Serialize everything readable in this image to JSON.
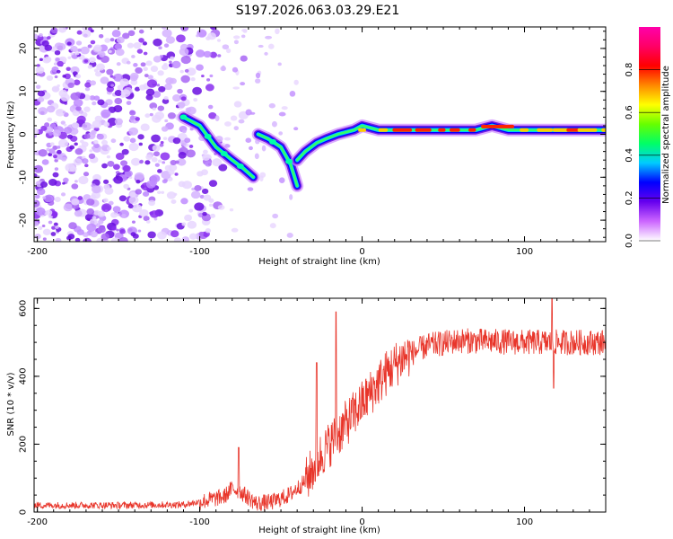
{
  "title": "S197.2026.063.03.29.E21",
  "colors": {
    "snr_line": "#e8352a",
    "speck": "#8a2ef0",
    "axis": "#000000"
  },
  "chart_data": [
    {
      "type": "heatmap",
      "name": "spectrogram",
      "xlabel": "Height of straight line (km)",
      "ylabel": "Frequency (Hz)",
      "xlim": [
        -202,
        150
      ],
      "ylim": [
        -25,
        25
      ],
      "xticks": [
        -200,
        -100,
        0,
        100
      ],
      "yticks": [
        -20,
        -10,
        0,
        10,
        20
      ],
      "colorbar": {
        "label": "Normalized spectral amplitude",
        "range": [
          0,
          1
        ],
        "ticks": [
          "0.0",
          "0.2",
          "0.4",
          "0.6",
          "0.8"
        ],
        "tick_values": [
          0.0,
          0.2,
          0.4,
          0.6,
          0.8
        ],
        "stops": [
          "#ffffff",
          "#cc66ff",
          "#6600ee",
          "#0000ff",
          "#00ccff",
          "#00ff66",
          "#66ff00",
          "#ffff00",
          "#ff8800",
          "#ff0000",
          "#ff0066",
          "#ff00aa"
        ]
      },
      "noise_region": {
        "x": [
          -202,
          -90
        ],
        "y": [
          -25,
          25
        ]
      },
      "ridge": [
        {
          "x": -110,
          "f": 4
        },
        {
          "x": -100,
          "f": 2
        },
        {
          "x": -90,
          "f": -3
        },
        {
          "x": -80,
          "f": -6
        },
        {
          "x": -73,
          "f": -8
        },
        {
          "x": -67,
          "f": -10
        },
        {
          "x": -64,
          "f": 0
        },
        {
          "x": -58,
          "f": -1
        },
        {
          "x": -50,
          "f": -3
        },
        {
          "x": -44,
          "f": -7
        },
        {
          "x": -40,
          "f": -12
        },
        {
          "x": -40,
          "f": -6
        },
        {
          "x": -35,
          "f": -4
        },
        {
          "x": -28,
          "f": -2
        },
        {
          "x": -22,
          "f": -1
        },
        {
          "x": -15,
          "f": 0
        },
        {
          "x": -5,
          "f": 1
        },
        {
          "x": 0,
          "f": 2
        },
        {
          "x": 10,
          "f": 1
        },
        {
          "x": 30,
          "f": 1
        },
        {
          "x": 50,
          "f": 1
        },
        {
          "x": 70,
          "f": 1
        },
        {
          "x": 80,
          "f": 2
        },
        {
          "x": 90,
          "f": 1
        },
        {
          "x": 100,
          "f": 1
        },
        {
          "x": 115,
          "f": 1
        },
        {
          "x": 130,
          "f": 1
        },
        {
          "x": 150,
          "f": 1
        }
      ]
    },
    {
      "type": "line",
      "name": "snr",
      "xlabel": "Height of straight line (km)",
      "ylabel": "SNR (10 * v/v)",
      "xlim": [
        -202,
        150
      ],
      "ylim": [
        0,
        630
      ],
      "xticks": [
        -200,
        -100,
        0,
        100
      ],
      "yticks": [
        0,
        200,
        400,
        600
      ],
      "trend": [
        {
          "x": -202,
          "y": 20
        },
        {
          "x": -150,
          "y": 20
        },
        {
          "x": -110,
          "y": 22
        },
        {
          "x": -100,
          "y": 30
        },
        {
          "x": -85,
          "y": 45
        },
        {
          "x": -80,
          "y": 70
        },
        {
          "x": -75,
          "y": 60
        },
        {
          "x": -65,
          "y": 25
        },
        {
          "x": -55,
          "y": 30
        },
        {
          "x": -45,
          "y": 50
        },
        {
          "x": -35,
          "y": 90
        },
        {
          "x": -25,
          "y": 170
        },
        {
          "x": -15,
          "y": 230
        },
        {
          "x": -5,
          "y": 290
        },
        {
          "x": 5,
          "y": 350
        },
        {
          "x": 15,
          "y": 410
        },
        {
          "x": 25,
          "y": 455
        },
        {
          "x": 40,
          "y": 490
        },
        {
          "x": 60,
          "y": 505
        },
        {
          "x": 100,
          "y": 500
        },
        {
          "x": 150,
          "y": 500
        }
      ],
      "spikes": [
        {
          "x": -76,
          "y": 190
        },
        {
          "x": -16,
          "y": 590
        },
        {
          "x": -28,
          "y": 440
        },
        {
          "x": 117,
          "y": 635
        },
        {
          "x": 118,
          "y": 365
        }
      ]
    }
  ]
}
